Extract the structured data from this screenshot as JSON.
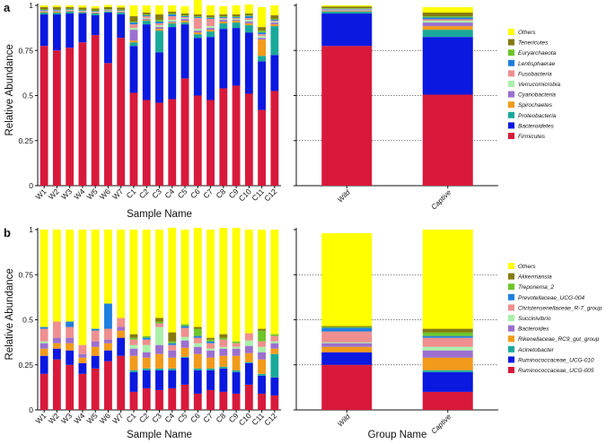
{
  "chart_data": [
    {
      "panel": "a",
      "type": "bar",
      "stacked": true,
      "ylabel": "Relative Abundance",
      "xlabel": "Sample Name",
      "ylim": [
        0,
        1
      ],
      "yticks": [
        "0",
        "0.25",
        "0.5",
        "0.75",
        "1"
      ],
      "categories": [
        "W1",
        "W2",
        "W3",
        "W4",
        "W5",
        "W6",
        "W7",
        "C1",
        "C2",
        "C3",
        "C4",
        "C5",
        "C6",
        "C7",
        "C8",
        "C9",
        "C10",
        "C11",
        "C12"
      ],
      "group_chart": {
        "categories": [
          "Wild",
          "Captive"
        ],
        "xlabel": "",
        "series": [
          {
            "name": "Firmicutes",
            "values": [
              0.775,
              0.505
            ]
          },
          {
            "name": "Bacteroidetes",
            "values": [
              0.18,
              0.32
            ]
          },
          {
            "name": "Proteobacteria",
            "values": [
              0.01,
              0.04
            ]
          },
          {
            "name": "Spirochaetes",
            "values": [
              0.004,
              0.02
            ]
          },
          {
            "name": "Cyanobacteria",
            "values": [
              0.004,
              0.02
            ]
          },
          {
            "name": "Verrucomicrobia",
            "values": [
              0.003,
              0.01
            ]
          },
          {
            "name": "Fusobacteria",
            "values": [
              0.002,
              0.008
            ]
          },
          {
            "name": "Lentisphaerae",
            "values": [
              0.003,
              0.01
            ]
          },
          {
            "name": "Euryarchaeota",
            "values": [
              0.003,
              0.007
            ]
          },
          {
            "name": "Tenericutes",
            "values": [
              0.01,
              0.02
            ]
          },
          {
            "name": "Others",
            "values": [
              0.006,
              0.03
            ]
          }
        ]
      },
      "series": [
        {
          "name": "Firmicutes",
          "color": "#d8193b",
          "values": [
            0.775,
            0.75,
            0.765,
            0.795,
            0.835,
            0.68,
            0.82,
            0.515,
            0.475,
            0.46,
            0.48,
            0.595,
            0.5,
            0.475,
            0.54,
            0.555,
            0.51,
            0.42,
            0.525
          ]
        },
        {
          "name": "Bacteroidetes",
          "color": "#0b18e0",
          "values": [
            0.175,
            0.2,
            0.19,
            0.16,
            0.11,
            0.28,
            0.13,
            0.26,
            0.42,
            0.28,
            0.4,
            0.3,
            0.32,
            0.35,
            0.33,
            0.32,
            0.34,
            0.27,
            0.2
          ]
        },
        {
          "name": "Proteobacteria",
          "color": "#1aa89b",
          "values": [
            0.01,
            0.01,
            0.01,
            0.005,
            0.01,
            0.005,
            0.01,
            0.02,
            0.02,
            0.12,
            0.02,
            0.01,
            0.02,
            0.03,
            0.03,
            0.03,
            0.04,
            0.03,
            0.16
          ]
        },
        {
          "name": "Spirochaetes",
          "color": "#f29a1a",
          "values": [
            0.005,
            0.005,
            0.003,
            0.003,
            0.003,
            0.002,
            0.003,
            0.01,
            0.005,
            0.01,
            0.005,
            0.01,
            0.01,
            0.01,
            0.01,
            0.01,
            0.01,
            0.09,
            0.01
          ]
        },
        {
          "name": "Cyanobacteria",
          "color": "#9b6fd0",
          "values": [
            0.003,
            0.003,
            0.003,
            0.003,
            0.003,
            0.002,
            0.003,
            0.06,
            0.005,
            0.01,
            0.005,
            0.01,
            0.01,
            0.01,
            0.01,
            0.005,
            0.01,
            0.01,
            0.01
          ]
        },
        {
          "name": "Verrucomicrobia",
          "color": "#a9f0a9",
          "values": [
            0.002,
            0.002,
            0.002,
            0.002,
            0.002,
            0.002,
            0.002,
            0.01,
            0.005,
            0.01,
            0.01,
            0.005,
            0.01,
            0.01,
            0.005,
            0.005,
            0.01,
            0.01,
            0.005
          ]
        },
        {
          "name": "Fusobacteria",
          "color": "#ef8f8f",
          "values": [
            0.002,
            0.002,
            0.002,
            0.002,
            0.002,
            0.002,
            0.002,
            0.02,
            0.01,
            0.01,
            0.02,
            0.005,
            0.06,
            0.04,
            0.005,
            0.005,
            0.01,
            0.01,
            0.005
          ]
        },
        {
          "name": "Lentisphaerae",
          "color": "#1f7fe0",
          "values": [
            0.003,
            0.003,
            0.003,
            0.003,
            0.003,
            0.003,
            0.003,
            0.01,
            0.005,
            0.01,
            0.01,
            0.005,
            0.005,
            0.005,
            0.005,
            0.005,
            0.01,
            0.01,
            0.005
          ]
        },
        {
          "name": "Euryarchaeota",
          "color": "#6ec52b",
          "values": [
            0.003,
            0.003,
            0.003,
            0.003,
            0.003,
            0.003,
            0.003,
            0.005,
            0.005,
            0.01,
            0.005,
            0.005,
            0.005,
            0.005,
            0.005,
            0.005,
            0.005,
            0.01,
            0.005
          ]
        },
        {
          "name": "Tenericutes",
          "color": "#857a10",
          "values": [
            0.012,
            0.012,
            0.01,
            0.012,
            0.012,
            0.012,
            0.012,
            0.03,
            0.01,
            0.03,
            0.01,
            0.01,
            0.01,
            0.01,
            0.01,
            0.01,
            0.01,
            0.02,
            0.02
          ]
        },
        {
          "name": "Others",
          "color": "#ffff00",
          "values": [
            0.01,
            0.01,
            0.009,
            0.012,
            0.012,
            0.011,
            0.012,
            0.06,
            0.04,
            0.05,
            0.035,
            0.04,
            0.1,
            0.055,
            0.045,
            0.05,
            0.05,
            0.11,
            0.055
          ]
        }
      ],
      "legend": [
        "Others",
        "Tenericutes",
        "Euryarchaeota",
        "Lentisphaerae",
        "Fusobacteria",
        "Verrucomicrobia",
        "Cyanobacteria",
        "Spirochaetes",
        "Proteobacteria",
        "Bacteroidetes",
        "Firmicutes"
      ]
    },
    {
      "panel": "b",
      "type": "bar",
      "stacked": true,
      "ylabel": "Relative Abundance",
      "xlabel": "Sample Name",
      "ylim": [
        0,
        1
      ],
      "yticks": [
        "0",
        "0.25",
        "0.5",
        "0.75",
        "1"
      ],
      "categories": [
        "W1",
        "W2",
        "W3",
        "W4",
        "W5",
        "W6",
        "W7",
        "C1",
        "C2",
        "C3",
        "C4",
        "C5",
        "C6",
        "C7",
        "C8",
        "C9",
        "C10",
        "C11",
        "C12"
      ],
      "group_chart": {
        "categories": [
          "Wild",
          "Captive"
        ],
        "xlabel": "Group Name",
        "series": [
          {
            "name": "Ruminococcaceae_UCG-005",
            "values": [
              0.25,
              0.1
            ]
          },
          {
            "name": "Ruminococcaceae_UCG-010",
            "values": [
              0.07,
              0.11
            ]
          },
          {
            "name": "Acinetobacter",
            "values": [
              0.0,
              0.01
            ]
          },
          {
            "name": "Rikenellaceae_RC9_gut_group",
            "values": [
              0.03,
              0.07
            ]
          },
          {
            "name": "Bacteroides",
            "values": [
              0.02,
              0.04
            ]
          },
          {
            "name": "Succinivibrio",
            "values": [
              0.005,
              0.02
            ]
          },
          {
            "name": "Christensenellaceae_R-7_group",
            "values": [
              0.06,
              0.05
            ]
          },
          {
            "name": "Prevotellaceae_UCG-004",
            "values": [
              0.02,
              0.01
            ]
          },
          {
            "name": "Treponema_2",
            "values": [
              0.005,
              0.02
            ]
          },
          {
            "name": "Akkermansia",
            "values": [
              0.005,
              0.02
            ]
          },
          {
            "name": "Others",
            "values": [
              0.515,
              0.55
            ]
          }
        ]
      },
      "series": [
        {
          "name": "Ruminococcaceae_UCG-005",
          "color": "#d8193b",
          "values": [
            0.2,
            0.28,
            0.25,
            0.2,
            0.23,
            0.27,
            0.3,
            0.1,
            0.12,
            0.11,
            0.12,
            0.14,
            0.09,
            0.11,
            0.1,
            0.09,
            0.14,
            0.09,
            0.08
          ]
        },
        {
          "name": "Ruminococcaceae_UCG-010",
          "color": "#0b18e0",
          "values": [
            0.1,
            0.06,
            0.08,
            0.06,
            0.07,
            0.06,
            0.1,
            0.11,
            0.1,
            0.11,
            0.1,
            0.15,
            0.13,
            0.11,
            0.13,
            0.12,
            0.12,
            0.1,
            0.1
          ]
        },
        {
          "name": "Acinetobacter",
          "color": "#1aa89b",
          "values": [
            0.0,
            0.0,
            0.0,
            0.0,
            0.0,
            0.0,
            0.0,
            0.01,
            0.01,
            0.01,
            0.01,
            0.005,
            0.01,
            0.01,
            0.01,
            0.01,
            0.005,
            0.01,
            0.13
          ]
        },
        {
          "name": "Rikenellaceae_RC9_gut_group",
          "color": "#f29a1a",
          "values": [
            0.04,
            0.03,
            0.04,
            0.03,
            0.05,
            0.04,
            0.04,
            0.08,
            0.06,
            0.08,
            0.06,
            0.05,
            0.08,
            0.06,
            0.06,
            0.08,
            0.05,
            0.08,
            0.03
          ]
        },
        {
          "name": "Bacteroides",
          "color": "#9b6fd0",
          "values": [
            0.03,
            0.03,
            0.03,
            0.02,
            0.03,
            0.02,
            0.02,
            0.04,
            0.03,
            0.05,
            0.04,
            0.04,
            0.04,
            0.04,
            0.04,
            0.04,
            0.04,
            0.04,
            0.03
          ]
        },
        {
          "name": "Succinivibrio",
          "color": "#a9f0a9",
          "values": [
            0.01,
            0.0,
            0.0,
            0.0,
            0.0,
            0.0,
            0.0,
            0.02,
            0.04,
            0.1,
            0.0,
            0.02,
            0.02,
            0.01,
            0.01,
            0.01,
            0.03,
            0.03,
            0.01
          ]
        },
        {
          "name": "Christensenellaceae_R-7_group",
          "color": "#ef8f8f",
          "values": [
            0.07,
            0.09,
            0.06,
            0.05,
            0.06,
            0.06,
            0.05,
            0.03,
            0.03,
            0.02,
            0.03,
            0.05,
            0.03,
            0.03,
            0.04,
            0.02,
            0.04,
            0.03,
            0.03
          ]
        },
        {
          "name": "Prevotellaceae_UCG-004",
          "color": "#1f7fe0",
          "values": [
            0.01,
            0.0,
            0.03,
            0.0,
            0.01,
            0.14,
            0.0,
            0.0,
            0.01,
            0.0,
            0.01,
            0.01,
            0.01,
            0.01,
            0.0,
            0.0,
            0.0,
            0.0,
            0.0
          ]
        },
        {
          "name": "Treponema_2",
          "color": "#6ec52b",
          "values": [
            0.0,
            0.0,
            0.0,
            0.0,
            0.0,
            0.0,
            0.0,
            0.01,
            0.01,
            0.01,
            0.01,
            0.01,
            0.04,
            0.01,
            0.01,
            0.01,
            0.0,
            0.06,
            0.01
          ]
        },
        {
          "name": "Akkermansia",
          "color": "#857a10",
          "values": [
            0.0,
            0.0,
            0.0,
            0.0,
            0.0,
            0.0,
            0.0,
            0.02,
            0.0,
            0.02,
            0.05,
            0.0,
            0.01,
            0.01,
            0.02,
            0.0,
            0.0,
            0.01,
            0.0
          ]
        },
        {
          "name": "Others",
          "color": "#ffff00",
          "values": [
            0.54,
            0.51,
            0.51,
            0.64,
            0.55,
            0.41,
            0.49,
            0.58,
            0.59,
            0.49,
            0.58,
            0.525,
            0.55,
            0.6,
            0.59,
            0.63,
            0.575,
            0.55,
            0.58
          ]
        }
      ],
      "legend": [
        "Others",
        "Akkermansia",
        "Treponema_2",
        "Prevotellaceae_UCG-004",
        "Christensenellaceae_R-7_group",
        "Succinivibrio",
        "Bacteroides",
        "Rikenellaceae_RC9_gut_group",
        "Acinetobacter",
        "Ruminococcaceae_UCG-010",
        "Ruminococcaceae_UCG-005"
      ]
    }
  ]
}
